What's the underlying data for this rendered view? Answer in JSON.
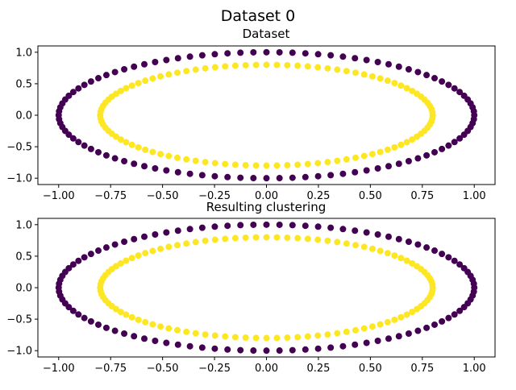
{
  "figure": {
    "title": "Dataset 0"
  },
  "colors": {
    "outer": "#440154",
    "inner": "#fde725"
  },
  "chart_data": [
    {
      "type": "scatter",
      "title": "Dataset",
      "xlabel": "",
      "ylabel": "",
      "xlim": [
        -1.1,
        1.1
      ],
      "ylim": [
        -1.1,
        1.1
      ],
      "xticks": [
        -1.0,
        -0.75,
        -0.5,
        -0.25,
        0.0,
        0.25,
        0.5,
        0.75,
        1.0
      ],
      "yticks": [
        -1.0,
        -0.5,
        0.0,
        0.5,
        1.0
      ],
      "grid": false,
      "legend": "none",
      "series": [
        {
          "group": "outer",
          "shape": "circle",
          "radius": 1.0,
          "count": 100
        },
        {
          "group": "inner",
          "shape": "circle",
          "radius": 0.8,
          "count": 100
        }
      ]
    },
    {
      "type": "scatter",
      "title": "Resulting clustering",
      "xlabel": "",
      "ylabel": "",
      "xlim": [
        -1.1,
        1.1
      ],
      "ylim": [
        -1.1,
        1.1
      ],
      "xticks": [
        -1.0,
        -0.75,
        -0.5,
        -0.25,
        0.0,
        0.25,
        0.5,
        0.75,
        1.0
      ],
      "yticks": [
        -1.0,
        -0.5,
        0.0,
        0.5,
        1.0
      ],
      "grid": false,
      "legend": "none",
      "series": [
        {
          "group": "outer",
          "shape": "circle",
          "radius": 1.0,
          "count": 100
        },
        {
          "group": "inner",
          "shape": "circle",
          "radius": 0.8,
          "count": 100
        }
      ]
    }
  ]
}
